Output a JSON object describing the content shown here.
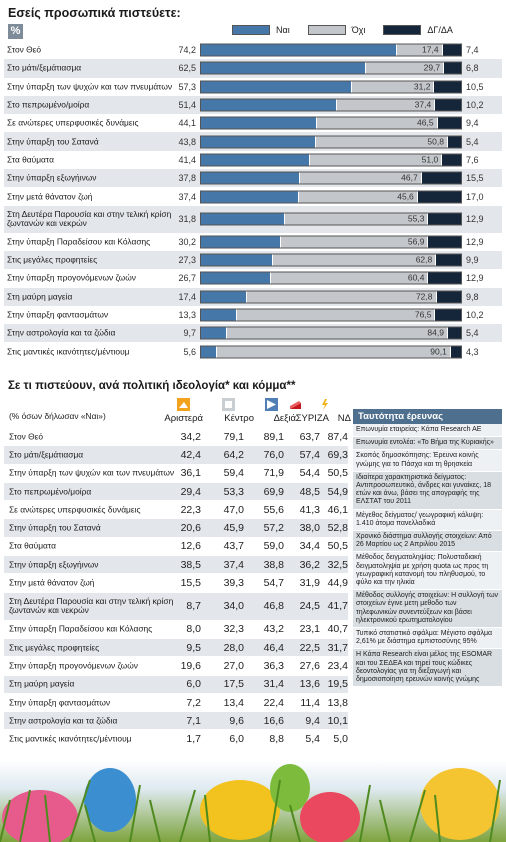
{
  "chart_data": [
    {
      "type": "bar",
      "stacked": true,
      "title": "Εσείς προσωπικά πιστεύετε:",
      "unit_badge": "%",
      "legend_position": "top",
      "series": [
        {
          "name": "Ναι",
          "color": "#4577a8",
          "values": [
            74.2,
            62.5,
            57.3,
            51.4,
            44.1,
            43.8,
            41.4,
            37.8,
            37.4,
            31.8,
            30.2,
            27.3,
            26.7,
            17.4,
            13.3,
            9.7,
            5.6
          ]
        },
        {
          "name": "Όχι",
          "color": "#c3c7cc",
          "values": [
            17.4,
            29.7,
            31.2,
            37.4,
            46.5,
            50.8,
            51.0,
            46.7,
            45.6,
            55.3,
            56.9,
            62.8,
            60.4,
            72.8,
            76.5,
            84.9,
            90.1
          ]
        },
        {
          "name": "ΔΓ/ΔΑ",
          "color": "#15263a",
          "values": [
            7.4,
            6.8,
            10.5,
            10.2,
            9.4,
            5.4,
            7.6,
            15.5,
            17.0,
            12.9,
            12.9,
            9.9,
            12.9,
            9.8,
            10.2,
            5.4,
            4.3
          ]
        }
      ],
      "value_labels": {
        "yes": [
          "74,2",
          "62,5",
          "57,3",
          "51,4",
          "44,1",
          "43,8",
          "41,4",
          "37,8",
          "37,4",
          "31,8",
          "30,2",
          "27,3",
          "26,7",
          "17,4",
          "13,3",
          "9,7",
          "5,6"
        ],
        "no": [
          "17,4",
          "29,7",
          "31,2",
          "37,4",
          "46,5",
          "50,8",
          "51,0",
          "46,7",
          "45,6",
          "55,3",
          "56,9",
          "62,8",
          "60,4",
          "72,8",
          "76,5",
          "84,9",
          "90,1"
        ],
        "dk": [
          "7,4",
          "6,8",
          "10,5",
          "10,2",
          "9,4",
          "5,4",
          "7,6",
          "15,5",
          "17,0",
          "12,9",
          "12,9",
          "9,9",
          "12,9",
          "9,8",
          "10,2",
          "5,4",
          "4,3"
        ]
      },
      "categories": [
        "Στον Θεό",
        "Στο μάτι/ξεμάτιασμα",
        "Στην ύπαρξη των ψυχών και των πνευμάτων",
        "Στο πεπρωμένο/μοίρα",
        "Σε ανώτερες υπερφυσικές δυνάμεις",
        "Στην ύπαρξη του Σατανά",
        "Στα θαύματα",
        "Στην ύπαρξη εξωγήινων",
        "Στην μετά θάνατον ζωή",
        "Στη Δευτέρα Παρουσία και στην τελική κρίση ζωντανών και νεκρών",
        "Στην ύπαρξη Παραδείσου και Κόλασης",
        "Στις μεγάλες προφητείες",
        "Στην ύπαρξη προγονόμενων ζωών",
        "Στη μαύρη μαγεία",
        "Στην ύπαρξη φαντασμάτων",
        "Στην αστρολογία και τα ζώδια",
        "Στις μαντικές ικανότητες/μέντιουμ"
      ]
    },
    {
      "type": "table",
      "title": "Σε τι πιστεύουν, ανά πολιτική ιδεολογία* και κόμμα**",
      "note": "(% όσων δήλωσαν «Ναι»)",
      "columns": [
        "Αριστερά",
        "Κέντρο",
        "Δεξιά",
        "ΣΥΡΙΖΑ",
        "ΝΔ"
      ],
      "rows": [
        {
          "label": "Στον Θεό",
          "values": [
            "34,2",
            "79,1",
            "89,1",
            "63,7",
            "87,4"
          ]
        },
        {
          "label": "Στο μάτι/ξεμάτιασμα",
          "values": [
            "42,4",
            "64,2",
            "76,0",
            "57,4",
            "69,3"
          ]
        },
        {
          "label": "Στην ύπαρξη των ψυχών και των πνευμάτων",
          "values": [
            "36,1",
            "59,4",
            "71,9",
            "54,4",
            "50,5"
          ]
        },
        {
          "label": "Στο πεπρωμένο/μοίρα",
          "values": [
            "29,4",
            "53,3",
            "69,9",
            "48,5",
            "54,9"
          ]
        },
        {
          "label": "Σε ανώτερες υπερφυσικές δυνάμεις",
          "values": [
            "22,3",
            "47,0",
            "55,6",
            "41,3",
            "46,1"
          ]
        },
        {
          "label": "Στην ύπαρξη του Σατανά",
          "values": [
            "20,6",
            "45,9",
            "57,2",
            "38,0",
            "52,8"
          ]
        },
        {
          "label": "Στα θαύματα",
          "values": [
            "12,6",
            "43,7",
            "59,0",
            "34,4",
            "50,5"
          ]
        },
        {
          "label": "Στην ύπαρξη εξωγήινων",
          "values": [
            "38,5",
            "37,4",
            "38,8",
            "36,2",
            "32,5"
          ]
        },
        {
          "label": "Στην μετά θάνατον ζωή",
          "values": [
            "15,5",
            "39,3",
            "54,7",
            "31,9",
            "44,9"
          ]
        },
        {
          "label": "Στη Δευτέρα Παρουσία και στην τελική κρίση ζωντανών και νεκρών",
          "values": [
            "8,7",
            "34,0",
            "46,8",
            "24,5",
            "41,7"
          ]
        },
        {
          "label": "Στην ύπαρξη Παραδείσου και Κόλασης",
          "values": [
            "8,0",
            "32,3",
            "43,2",
            "23,1",
            "40,7"
          ]
        },
        {
          "label": "Στις μεγάλες προφητείες",
          "values": [
            "9,5",
            "28,0",
            "46,4",
            "22,5",
            "31,7"
          ]
        },
        {
          "label": "Στην ύπαρξη προγονόμενων ζωών",
          "values": [
            "19,6",
            "27,0",
            "36,3",
            "27,6",
            "23,4"
          ]
        },
        {
          "label": "Στη μαύρη μαγεία",
          "values": [
            "6,0",
            "17,5",
            "31,4",
            "13,6",
            "19,5"
          ]
        },
        {
          "label": "Στην ύπαρξη φαντασμάτων",
          "values": [
            "7,2",
            "13,4",
            "22,4",
            "11,4",
            "13,8"
          ]
        },
        {
          "label": "Στην αστρολογία και τα ζώδια",
          "values": [
            "7,1",
            "9,6",
            "16,6",
            "9,4",
            "10,1"
          ]
        },
        {
          "label": "Στις μαντικές ικανότητες/μέντιουμ",
          "values": [
            "1,7",
            "6,0",
            "8,8",
            "5,4",
            "5,0"
          ]
        }
      ]
    }
  ],
  "survey": {
    "title": "Ταυτότητα έρευνας",
    "blocks": [
      {
        "text": "Επωνυμία εταιρείας: Kάπα Research AE"
      },
      {
        "text": "Επωνυμία εντολέα: «Το Βήμα της Κυριακής»"
      },
      {
        "text": "Σκοπός δημοσκόπησης: Έρευνα κοινής γνώμης για το Πάσχα και τη θρησκεία"
      },
      {
        "text": "Ιδιαίτερα χαρακτηριστικά δείγματος: Αντιπροσωπευτικό, άνδρες και γυναίκες, 18 ετών και άνω, βάσει της απογραφής της ΕΛΣΤΑΤ του 2011"
      },
      {
        "text": "Μέγεθος δείγματος/ γεωγραφική κάλυψη: 1.410 άτομα πανελλαδικά"
      },
      {
        "text": "Χρονικό διάστημα συλλογής στοιχείων: Από 26 Μαρτίου ως 2 Απριλίου 2015"
      },
      {
        "text": "Μέθοδος δειγματοληψίας: Πολυσταδιακή δειγματοληψία με χρήση quota ως προς τη γεωγραφική κατανομή του πληθυσμού, το φύλο και την ηλικία"
      },
      {
        "text": "Μέθοδος συλλογής στοιχείων: Η συλλογή των στοιχείων έγινε μετη μεθοδο των τηλεφωνικών συνεντεύξεων και βάσει ηλεκτρονικού ερωτηματολογίου"
      },
      {
        "text": "Τυπικό στατιστικό σφάλμα: Μέγιστο σφάλμα 2,61% με διάστημα εμπιστοσύνης 95%"
      },
      {
        "text": "Η Κάπα Research είναι μέλος της ESOMAR και του ΣΕΔΕΑ και τηρεί τους κώδικες δεοντολογίας για τη διεξαγωγή και δημοσιοποίηση ερευνών κοινής γνώμης"
      }
    ]
  },
  "colors": {
    "yes": "#4577a8",
    "no": "#c3c7cc",
    "dk": "#15263a",
    "row_alt": "#e3e7eb",
    "survey_head": "#4f6f8e"
  },
  "icons": [
    "left-party-icon",
    "center-party-icon",
    "right-party-icon",
    "syriza-logo-icon",
    "nd-logo-icon",
    "easter-eggs-image"
  ]
}
